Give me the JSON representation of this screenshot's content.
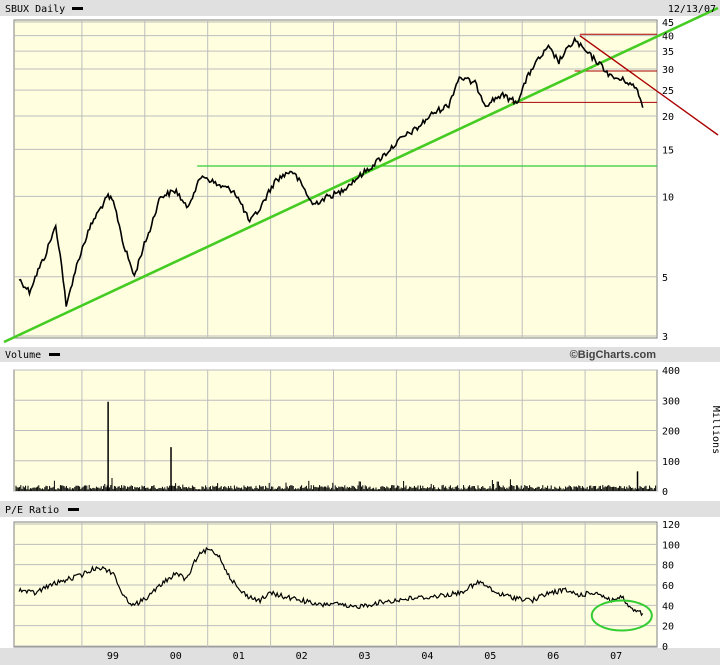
{
  "chart_data": [
    {
      "panel": "price",
      "type": "line",
      "title": "SBUX Daily",
      "date": "12/13/07",
      "yscale": "log",
      "ylim": [
        3,
        45
      ],
      "y_ticks": [
        "45",
        "40",
        "35",
        "30",
        "25",
        "20",
        "15",
        "10",
        "5",
        "3"
      ],
      "x_ticks": [
        "99",
        "00",
        "01",
        "02",
        "03",
        "04",
        "05",
        "06",
        "07"
      ],
      "grid": true,
      "series": [
        {
          "values_x": [
            "1998-01",
            "1998-03",
            "1998-06",
            "1998-08",
            "1998-10",
            "1998-12",
            "1999-03",
            "1999-06",
            "1999-07",
            "1999-09",
            "1999-11",
            "2000-02",
            "2000-04",
            "2000-07",
            "2000-09",
            "2000-12",
            "2001-03",
            "2001-06",
            "2001-09",
            "2001-11",
            "2002-02",
            "2002-05",
            "2002-07",
            "2002-09",
            "2002-12",
            "2003-02",
            "2003-05",
            "2003-08",
            "2003-11",
            "2004-02",
            "2004-05",
            "2004-08",
            "2004-11",
            "2005-01",
            "2005-04",
            "2005-06",
            "2005-09",
            "2005-12",
            "2006-03",
            "2006-06",
            "2006-08",
            "2006-11",
            "2007-01",
            "2007-04",
            "2007-06",
            "2007-09",
            "2007-11",
            "2007-12"
          ],
          "values_y": [
            4.9,
            4.4,
            6.0,
            7.7,
            3.8,
            5.5,
            8.0,
            10.0,
            9.5,
            6.5,
            5.0,
            7.5,
            10.0,
            10.5,
            9.0,
            12.0,
            11.0,
            10.5,
            8.0,
            9.0,
            11.5,
            12.5,
            11.0,
            9.3,
            10.0,
            10.3,
            11.5,
            12.8,
            14.5,
            16.5,
            18.0,
            20.5,
            22.0,
            28.0,
            26.5,
            22.0,
            24.0,
            22.5,
            30.5,
            36.0,
            32.0,
            38.5,
            35.0,
            31.0,
            28.0,
            27.0,
            25.0,
            21.5
          ]
        }
      ],
      "annotations": {
        "green_horizontal": 13.0,
        "red_horizontal": [
          40.5,
          29.5,
          22.5
        ],
        "green_trendline": [
          [
            "1998-01",
            3.0
          ],
          [
            "2008-01",
            45.0
          ]
        ],
        "red_trendline": [
          [
            "2006-12",
            40.0
          ],
          [
            "2008-01",
            17.0
          ]
        ]
      }
    },
    {
      "panel": "volume",
      "type": "bar",
      "title": "Volume",
      "unit": "Millions",
      "credit": "©BigCharts.com",
      "ylim": [
        0,
        400
      ],
      "y_ticks": [
        "400",
        "300",
        "200",
        "100",
        "0"
      ],
      "typical_range": [
        5,
        20
      ],
      "spikes": [
        {
          "x": "1999-06",
          "value": 295
        },
        {
          "x": "2000-06",
          "value": 145
        },
        {
          "x": "2007-11",
          "value": 65
        }
      ]
    },
    {
      "panel": "pe",
      "type": "line",
      "title": "P/E Ratio",
      "ylim": [
        0,
        120
      ],
      "y_ticks": [
        "120",
        "100",
        "80",
        "60",
        "40",
        "20",
        "0"
      ],
      "series": [
        {
          "values_x": [
            "1998-01",
            "1998-04",
            "1998-07",
            "1998-10",
            "1999-01",
            "1999-04",
            "1999-07",
            "1999-09",
            "1999-11",
            "2000-02",
            "2000-04",
            "2000-07",
            "2000-09",
            "2000-11",
            "2001-01",
            "2001-03",
            "2001-05",
            "2001-07",
            "2001-09",
            "2001-11",
            "2002-01",
            "2002-04",
            "2002-07",
            "2002-10",
            "2003-01",
            "2003-04",
            "2003-07",
            "2003-10",
            "2004-01",
            "2004-04",
            "2004-07",
            "2004-10",
            "2005-01",
            "2005-03",
            "2005-05",
            "2005-08",
            "2005-11",
            "2006-03",
            "2006-06",
            "2006-09",
            "2006-12",
            "2007-03",
            "2007-06",
            "2007-08",
            "2007-10",
            "2007-12"
          ],
          "values_y": [
            55,
            52,
            60,
            65,
            70,
            78,
            72,
            48,
            40,
            50,
            60,
            72,
            65,
            88,
            95,
            90,
            70,
            55,
            48,
            45,
            52,
            48,
            45,
            40,
            42,
            38,
            40,
            43,
            45,
            47,
            48,
            50,
            52,
            58,
            63,
            52,
            48,
            45,
            52,
            55,
            50,
            53,
            45,
            48,
            35,
            32
          ]
        }
      ],
      "annotations": {
        "green_ellipse_center": [
          "2007-08",
          30
        ]
      }
    }
  ]
}
